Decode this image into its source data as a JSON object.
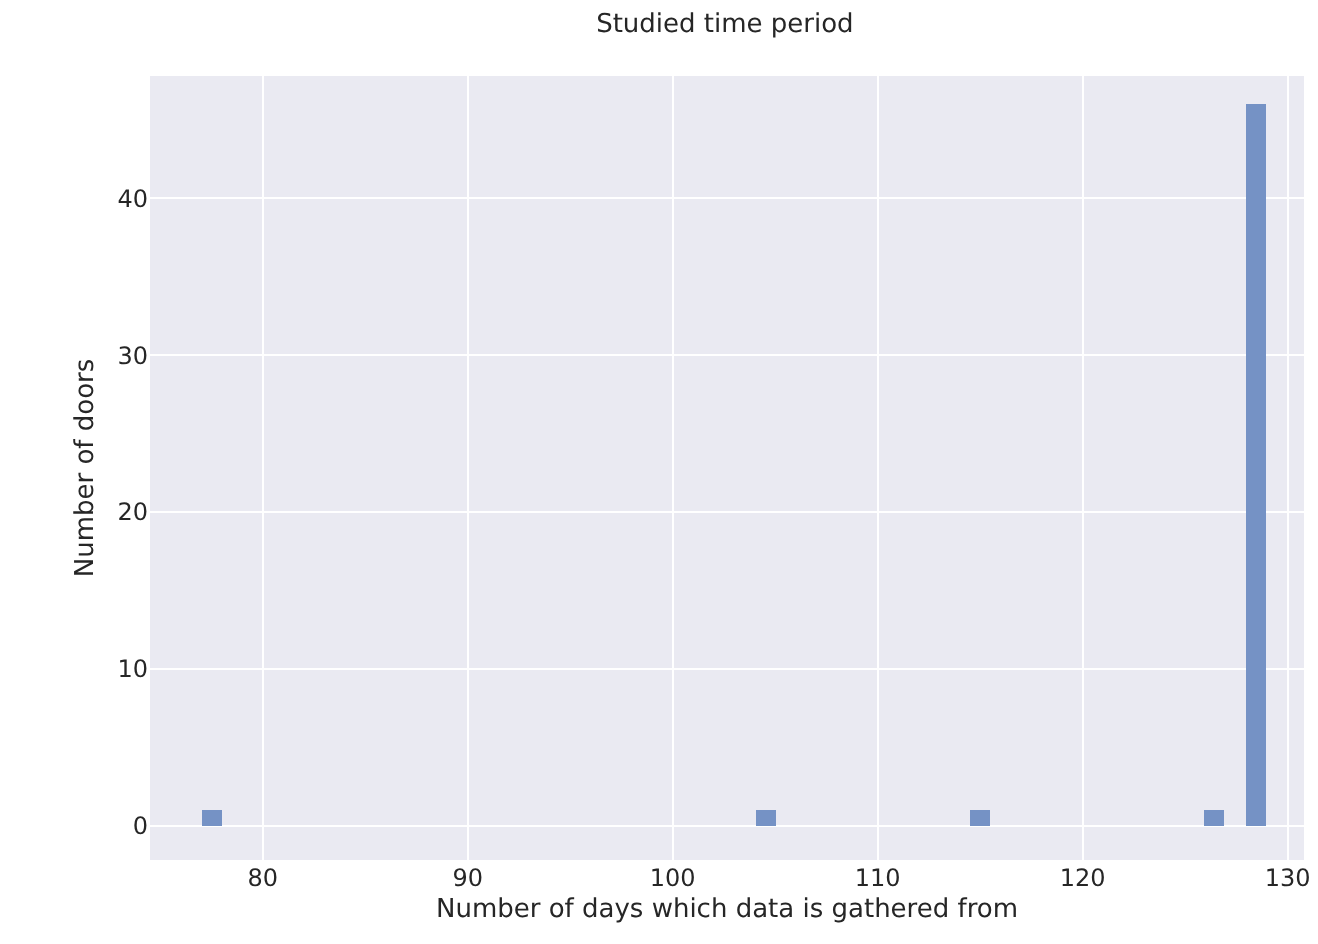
{
  "chart_data": {
    "type": "histogram",
    "title": "Studied time period",
    "xlabel": "Number of days which data is gathered from",
    "ylabel": "Number of doors",
    "bins": [
      77,
      78.04,
      79.08,
      80.12,
      81.16,
      82.2,
      83.24,
      84.28,
      85.32,
      86.36,
      87.4,
      88.44,
      89.48,
      90.52,
      91.56,
      92.6,
      93.64,
      94.68,
      95.72,
      96.76,
      97.8,
      98.84,
      99.88,
      100.92,
      101.96,
      103,
      104.04,
      105.08,
      106.12,
      107.16,
      108.2,
      109.24,
      110.28,
      111.32,
      112.36,
      113.4,
      114.44,
      115.48,
      116.52,
      117.56,
      118.6,
      119.64,
      120.68,
      121.72,
      122.76,
      123.8,
      124.84,
      125.88,
      126.92,
      127.96,
      129
    ],
    "values": [
      1,
      0,
      0,
      0,
      0,
      0,
      0,
      0,
      0,
      0,
      0,
      0,
      0,
      0,
      0,
      0,
      0,
      0,
      0,
      0,
      0,
      0,
      0,
      0,
      0,
      0,
      1,
      0,
      0,
      0,
      0,
      0,
      0,
      0,
      0,
      0,
      1,
      0,
      0,
      0,
      0,
      0,
      0,
      0,
      0,
      0,
      0,
      1,
      0,
      46
    ],
    "color": "#7592c5",
    "xlim": [
      74.5,
      130.8
    ],
    "ylim": [
      -2.2,
      47.8
    ],
    "xticks": [
      80,
      90,
      100,
      110,
      120,
      130
    ],
    "yticks": [
      0,
      10,
      20,
      30,
      40
    ],
    "grid": true
  }
}
